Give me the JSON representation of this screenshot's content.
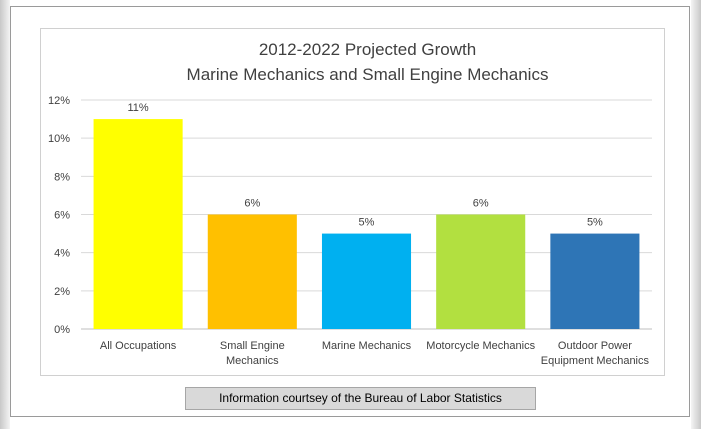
{
  "chart_data": {
    "type": "bar",
    "title_lines": [
      "2012-2022 Projected Growth",
      "Marine Mechanics and Small Engine Mechanics"
    ],
    "categories": [
      {
        "lines": [
          "All Occupations"
        ]
      },
      {
        "lines": [
          "Small Engine",
          "Mechanics"
        ]
      },
      {
        "lines": [
          "Marine Mechanics"
        ]
      },
      {
        "lines": [
          "Motorcycle Mechanics"
        ]
      },
      {
        "lines": [
          "Outdoor Power",
          "Equipment Mechanics"
        ]
      }
    ],
    "values": [
      11,
      6,
      5,
      6,
      5
    ],
    "data_labels": [
      "11%",
      "6%",
      "5%",
      "6%",
      "5%"
    ],
    "colors": [
      "#FFFF00",
      "#FFC000",
      "#00B0F0",
      "#B2E040",
      "#2E75B6"
    ],
    "ylim": [
      0,
      12
    ],
    "yticks": [
      {
        "value": 0,
        "label": "0%"
      },
      {
        "value": 2,
        "label": "2%"
      },
      {
        "value": 4,
        "label": "4%"
      },
      {
        "value": 6,
        "label": "6%"
      },
      {
        "value": 8,
        "label": "8%"
      },
      {
        "value": 10,
        "label": "10%"
      },
      {
        "value": 12,
        "label": "12%"
      }
    ],
    "grid": true,
    "xlabel": "",
    "ylabel": ""
  },
  "caption": "Information courtsey of the Bureau of Labor Statistics"
}
